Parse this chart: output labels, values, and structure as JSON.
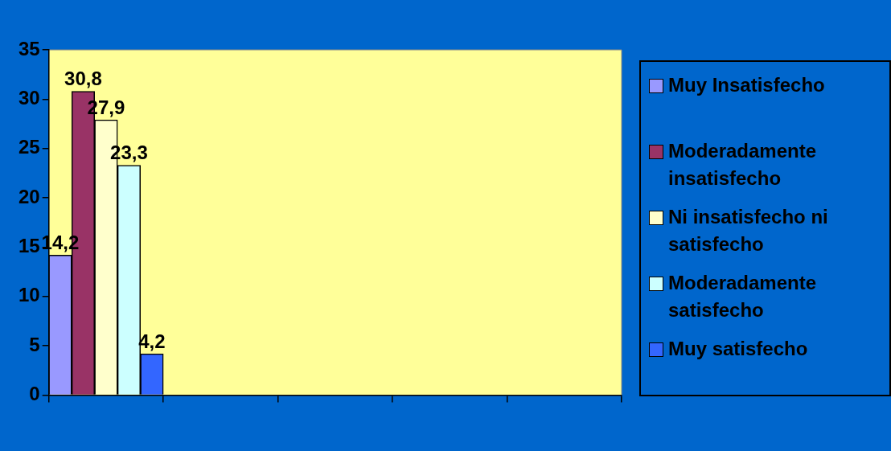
{
  "chart_data": {
    "type": "bar",
    "categories": [
      null,
      null,
      null,
      null,
      null
    ],
    "ylim": [
      0,
      35
    ],
    "yticks": [
      0,
      5,
      10,
      15,
      20,
      25,
      30,
      35
    ],
    "grid": false,
    "legend": "right",
    "series": [
      {
        "name": "Muy Insatisfecho",
        "color": "#9999ff",
        "values": [
          14.2,
          null,
          null,
          null,
          null
        ],
        "value_labels": [
          "14,2",
          null,
          null,
          null,
          null
        ]
      },
      {
        "name": "Moderadamente insatisfecho",
        "color": "#993366",
        "values": [
          30.8,
          null,
          null,
          null,
          null
        ],
        "value_labels": [
          "30,8",
          null,
          null,
          null,
          null
        ]
      },
      {
        "name": "Ni insatisfecho ni satisfecho",
        "color": "#ffffcc",
        "values": [
          27.9,
          null,
          null,
          null,
          null
        ],
        "value_labels": [
          "27,9",
          null,
          null,
          null,
          null
        ]
      },
      {
        "name": "Moderadamente satisfecho",
        "color": "#ccffff",
        "values": [
          23.3,
          null,
          null,
          null,
          null
        ],
        "value_labels": [
          "23,3",
          null,
          null,
          null,
          null
        ]
      },
      {
        "name": "Muy satisfecho",
        "color": "#3366ff",
        "values": [
          4.2,
          null,
          null,
          null,
          null
        ],
        "value_labels": [
          "4,2",
          null,
          null,
          null,
          null
        ]
      }
    ]
  }
}
